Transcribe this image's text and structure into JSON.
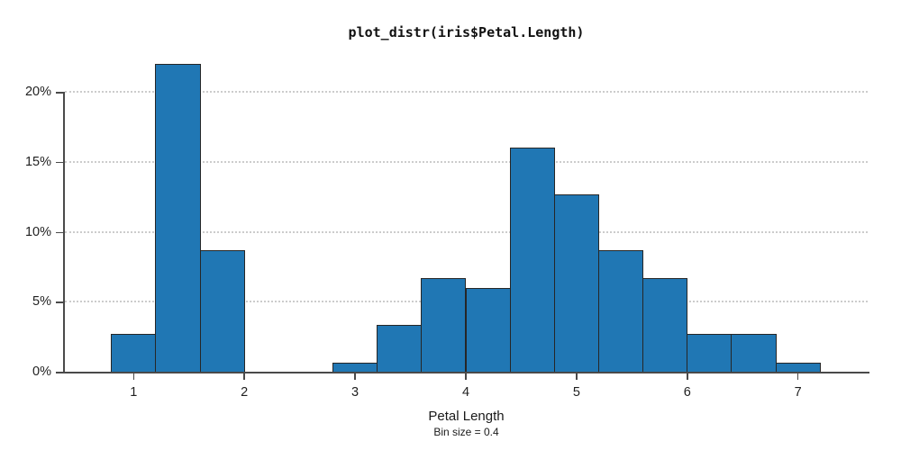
{
  "chart_data": {
    "type": "bar",
    "subtype": "histogram",
    "title": "plot_distr(iris$Petal.Length)",
    "xlabel": "Petal Length",
    "x_sublabel": "Bin size = 0.4",
    "ylabel": "",
    "bin_size": 0.4,
    "x_ticks": [
      "1",
      "2",
      "3",
      "4",
      "5",
      "6",
      "7"
    ],
    "x_tick_values": [
      1,
      2,
      3,
      4,
      5,
      6,
      7
    ],
    "y_ticks": [
      "0%",
      "5%",
      "10%",
      "15%",
      "20%"
    ],
    "y_tick_values": [
      0,
      5,
      10,
      15,
      20
    ],
    "xlim": [
      0.4,
      7.6
    ],
    "ylim": [
      0,
      22
    ],
    "grid": "horizontal dotted lines at each y tick except 0%",
    "legend": "none",
    "bins": [
      {
        "from": 0.8,
        "to": 1.2,
        "percent": 2.67
      },
      {
        "from": 1.2,
        "to": 1.6,
        "percent": 22.0
      },
      {
        "from": 1.6,
        "to": 2.0,
        "percent": 8.67
      },
      {
        "from": 2.0,
        "to": 2.4,
        "percent": 0
      },
      {
        "from": 2.4,
        "to": 2.8,
        "percent": 0
      },
      {
        "from": 2.8,
        "to": 3.2,
        "percent": 0.67
      },
      {
        "from": 3.2,
        "to": 3.6,
        "percent": 3.33
      },
      {
        "from": 3.6,
        "to": 4.0,
        "percent": 6.67
      },
      {
        "from": 4.0,
        "to": 4.4,
        "percent": 6.0
      },
      {
        "from": 4.4,
        "to": 4.8,
        "percent": 16.0
      },
      {
        "from": 4.8,
        "to": 5.2,
        "percent": 12.67
      },
      {
        "from": 5.2,
        "to": 5.6,
        "percent": 8.67
      },
      {
        "from": 5.6,
        "to": 6.0,
        "percent": 6.67
      },
      {
        "from": 6.0,
        "to": 6.4,
        "percent": 2.67
      },
      {
        "from": 6.4,
        "to": 6.8,
        "percent": 2.67
      },
      {
        "from": 6.8,
        "to": 7.2,
        "percent": 0.67
      }
    ],
    "colors": {
      "bar_fill": "#2077b4",
      "bar_border": "#262626",
      "axis": "#4a4a4a",
      "grid": "#cccccc",
      "text": "#1a1a1a"
    }
  }
}
